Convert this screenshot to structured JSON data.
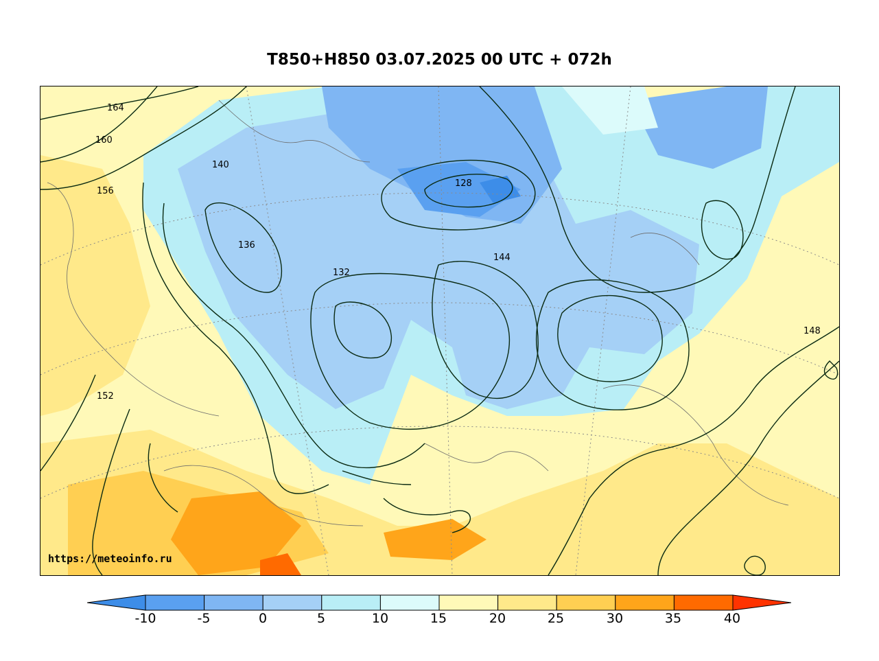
{
  "title": "T850+H850 03.07.2025 00 UTC + 072h",
  "credit": "https://meteoinfo.ru",
  "colorbar": {
    "labels": [
      "-10",
      "-5",
      "0",
      "5",
      "10",
      "15",
      "20",
      "25",
      "30",
      "35",
      "40"
    ],
    "colors": [
      "#3d8de8",
      "#5aa0f0",
      "#7fb6f3",
      "#a5d0f6",
      "#b9eef6",
      "#dcfbfb",
      "#fff9b8",
      "#ffe98a",
      "#ffcf52",
      "#ffa51a",
      "#ff6a00",
      "#ff3300"
    ]
  },
  "contour_labels": [
    "164",
    "160",
    "156",
    "152",
    "148",
    "144",
    "140",
    "136",
    "132",
    "128"
  ]
}
